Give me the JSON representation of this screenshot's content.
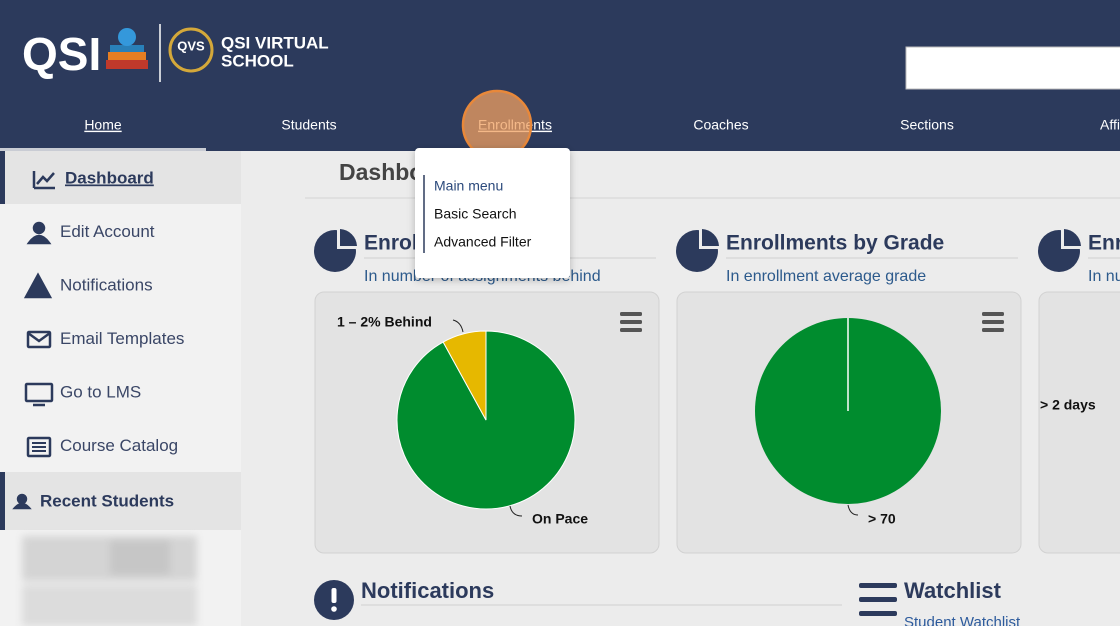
{
  "header": {
    "brand": "QSI",
    "school_line1": "QSI VIRTUAL",
    "school_line2": "SCHOOL",
    "logo_badge": "QVS"
  },
  "nav": [
    "Home",
    "Students",
    "Enrollments",
    "Coaches",
    "Sections",
    "Affi"
  ],
  "dropdown": [
    "Main menu",
    "Basic Search",
    "Advanced Filter"
  ],
  "sidebar": {
    "items": [
      "Dashboard",
      "Edit Account",
      "Notifications",
      "Email Templates",
      "Go to LMS",
      "Course Catalog"
    ],
    "recent": "Recent Students"
  },
  "page_title": "Dashboard",
  "widgets": [
    {
      "title": "Enrollments by Pace",
      "subtitle": "In number of assignments behind",
      "slices": [
        {
          "label": "On Pace",
          "value": 92,
          "color": "#008c2e"
        },
        {
          "label": "1 – 2% Behind",
          "value": 8,
          "color": "#e6b800"
        }
      ]
    },
    {
      "title": "Enrollments by Grade",
      "subtitle": "In enrollment average grade",
      "slices": [
        {
          "label": "> 70",
          "value": 100,
          "color": "#008c2e"
        }
      ]
    },
    {
      "title": "Enrollments",
      "subtitle": "In number",
      "slices": [
        {
          "label": "> 2 days"
        }
      ]
    }
  ],
  "sections": {
    "notifications": "Notifications",
    "watchlist": "Watchlist",
    "watchlist_link": "Student Watchlist"
  }
}
